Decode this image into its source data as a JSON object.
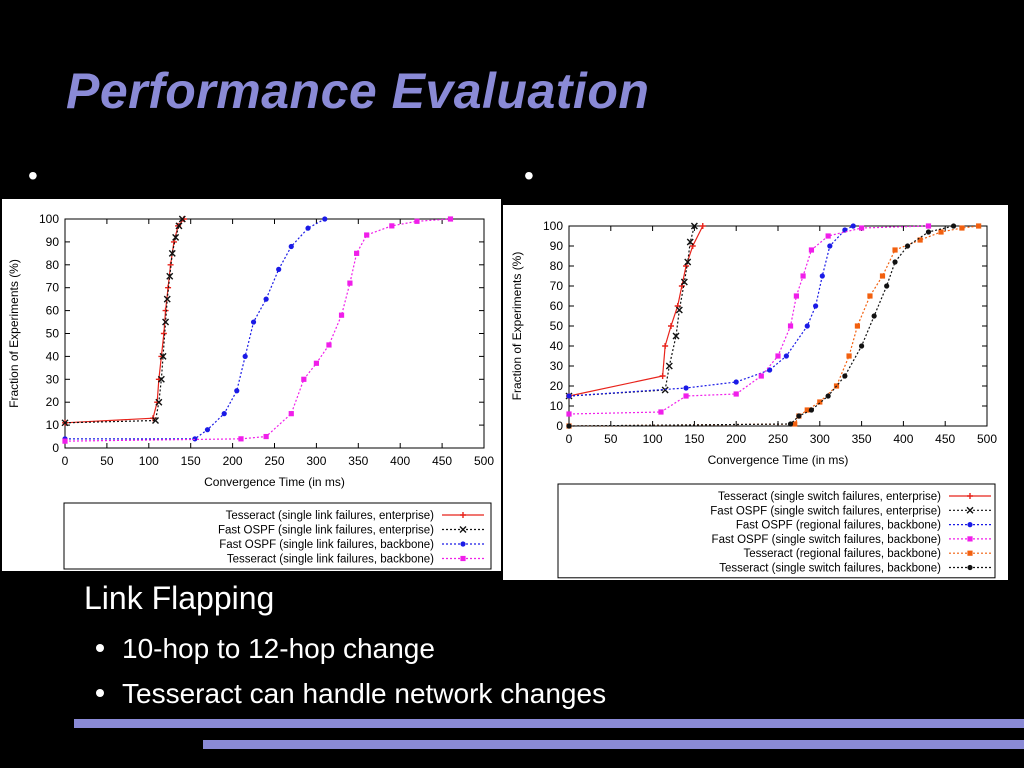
{
  "slide": {
    "title": "Performance Evaluation",
    "left_bullet": "•",
    "right_bullet": "•",
    "heading": "Link Flapping",
    "points": [
      "10-hop to 12-hop change",
      "Tesseract can handle network changes"
    ],
    "accent_color": "#8A8AD6"
  },
  "chart_data": [
    {
      "type": "line",
      "xlabel": "Convergence Time (in ms)",
      "ylabel": "Fraction of Experiments (%)",
      "xlim": [
        0,
        500
      ],
      "ylim": [
        0,
        100
      ],
      "xticks": [
        0,
        50,
        100,
        150,
        200,
        250,
        300,
        350,
        400,
        450,
        500
      ],
      "yticks": [
        0,
        10,
        20,
        30,
        40,
        50,
        60,
        70,
        80,
        90,
        100
      ],
      "grid": false,
      "legend_position": "bottom",
      "series": [
        {
          "name": "Tesseract (single link failures, enterprise)",
          "color": "#E8231B",
          "marker": "plus",
          "dash": "solid",
          "points": [
            [
              0,
              11
            ],
            [
              105,
              13
            ],
            [
              110,
              20
            ],
            [
              112,
              30
            ],
            [
              115,
              40
            ],
            [
              118,
              50
            ],
            [
              120,
              60
            ],
            [
              123,
              70
            ],
            [
              126,
              80
            ],
            [
              130,
              90
            ],
            [
              135,
              97
            ],
            [
              142,
              100
            ]
          ]
        },
        {
          "name": "Fast OSPF (single link failures, enterprise)",
          "color": "#111111",
          "marker": "x",
          "dash": "dotted",
          "points": [
            [
              0,
              11
            ],
            [
              108,
              12
            ],
            [
              112,
              20
            ],
            [
              115,
              30
            ],
            [
              117,
              40
            ],
            [
              120,
              55
            ],
            [
              122,
              65
            ],
            [
              125,
              75
            ],
            [
              128,
              85
            ],
            [
              132,
              92
            ],
            [
              136,
              97
            ],
            [
              140,
              100
            ]
          ]
        },
        {
          "name": "Fast OSPF (single link failures, backbone)",
          "color": "#1A1AE6",
          "marker": "circle",
          "dash": "dotted",
          "points": [
            [
              0,
              4
            ],
            [
              155,
              4
            ],
            [
              170,
              8
            ],
            [
              190,
              15
            ],
            [
              205,
              25
            ],
            [
              215,
              40
            ],
            [
              225,
              55
            ],
            [
              240,
              65
            ],
            [
              255,
              78
            ],
            [
              270,
              88
            ],
            [
              290,
              96
            ],
            [
              310,
              100
            ]
          ]
        },
        {
          "name": "Tesseract (single link failures, backbone)",
          "color": "#F01EEA",
          "marker": "square",
          "dash": "dotted",
          "points": [
            [
              0,
              3
            ],
            [
              210,
              4
            ],
            [
              240,
              5
            ],
            [
              270,
              15
            ],
            [
              285,
              30
            ],
            [
              300,
              37
            ],
            [
              315,
              45
            ],
            [
              330,
              58
            ],
            [
              340,
              72
            ],
            [
              348,
              85
            ],
            [
              360,
              93
            ],
            [
              390,
              97
            ],
            [
              420,
              99
            ],
            [
              460,
              100
            ]
          ]
        }
      ]
    },
    {
      "type": "line",
      "xlabel": "Convergence Time (in ms)",
      "ylabel": "Fraction of Experiments (%)",
      "xlim": [
        0,
        500
      ],
      "ylim": [
        0,
        100
      ],
      "xticks": [
        0,
        50,
        100,
        150,
        200,
        250,
        300,
        350,
        400,
        450,
        500
      ],
      "yticks": [
        0,
        10,
        20,
        30,
        40,
        50,
        60,
        70,
        80,
        90,
        100
      ],
      "grid": false,
      "legend_position": "bottom",
      "series": [
        {
          "name": "Tesseract (single switch failures, enterprise)",
          "color": "#E8231B",
          "marker": "plus",
          "dash": "solid",
          "points": [
            [
              0,
              15
            ],
            [
              112,
              25
            ],
            [
              115,
              40
            ],
            [
              122,
              50
            ],
            [
              130,
              60
            ],
            [
              135,
              70
            ],
            [
              140,
              80
            ],
            [
              148,
              90
            ],
            [
              160,
              100
            ]
          ]
        },
        {
          "name": "Fast OSPF (single switch failures, enterprise)",
          "color": "#111111",
          "marker": "x",
          "dash": "dotted",
          "points": [
            [
              0,
              15
            ],
            [
              115,
              18
            ],
            [
              120,
              30
            ],
            [
              128,
              45
            ],
            [
              132,
              58
            ],
            [
              138,
              72
            ],
            [
              142,
              82
            ],
            [
              145,
              92
            ],
            [
              150,
              100
            ]
          ]
        },
        {
          "name": "Fast OSPF (regional failures, backbone)",
          "color": "#1A1AE6",
          "marker": "circle",
          "dash": "dotted",
          "points": [
            [
              0,
              15
            ],
            [
              140,
              19
            ],
            [
              200,
              22
            ],
            [
              240,
              28
            ],
            [
              260,
              35
            ],
            [
              285,
              50
            ],
            [
              295,
              60
            ],
            [
              303,
              75
            ],
            [
              312,
              90
            ],
            [
              330,
              98
            ],
            [
              340,
              100
            ]
          ]
        },
        {
          "name": "Fast OSPF (single switch failures, backbone)",
          "color": "#F01EEA",
          "marker": "square",
          "dash": "dotted",
          "points": [
            [
              0,
              6
            ],
            [
              110,
              7
            ],
            [
              140,
              15
            ],
            [
              200,
              16
            ],
            [
              230,
              25
            ],
            [
              250,
              35
            ],
            [
              265,
              50
            ],
            [
              272,
              65
            ],
            [
              280,
              75
            ],
            [
              290,
              88
            ],
            [
              310,
              95
            ],
            [
              350,
              99
            ],
            [
              430,
              100
            ]
          ]
        },
        {
          "name": "Tesseract (regional failures, backbone)",
          "color": "#F2600F",
          "marker": "square",
          "dash": "dotted",
          "points": [
            [
              0,
              0
            ],
            [
              270,
              1
            ],
            [
              275,
              5
            ],
            [
              285,
              8
            ],
            [
              300,
              12
            ],
            [
              320,
              20
            ],
            [
              335,
              35
            ],
            [
              345,
              50
            ],
            [
              360,
              65
            ],
            [
              375,
              75
            ],
            [
              390,
              88
            ],
            [
              420,
              93
            ],
            [
              445,
              97
            ],
            [
              470,
              99
            ],
            [
              490,
              100
            ]
          ]
        },
        {
          "name": "Tesseract (single switch failures, backbone)",
          "color": "#111111",
          "marker": "circle",
          "dash": "dotted",
          "points": [
            [
              0,
              0
            ],
            [
              265,
              1
            ],
            [
              275,
              5
            ],
            [
              290,
              8
            ],
            [
              310,
              15
            ],
            [
              330,
              25
            ],
            [
              350,
              40
            ],
            [
              365,
              55
            ],
            [
              380,
              70
            ],
            [
              390,
              82
            ],
            [
              405,
              90
            ],
            [
              430,
              97
            ],
            [
              460,
              100
            ]
          ]
        }
      ]
    }
  ]
}
